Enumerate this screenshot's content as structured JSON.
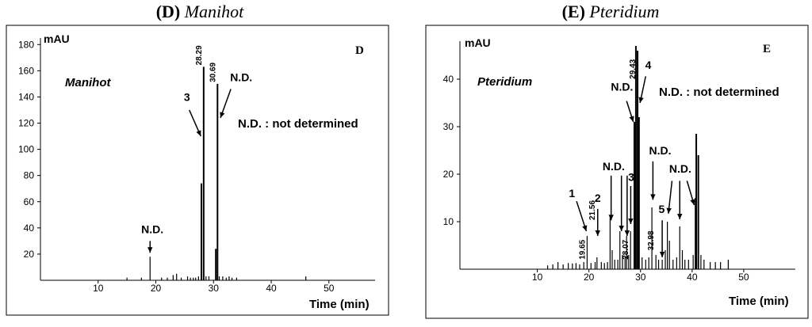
{
  "chart_data": [
    {
      "type": "line",
      "id": "D",
      "title_letter": "(D)",
      "title_name": "Manihot",
      "panel_letter": "D",
      "panel_name": "Manihot",
      "ylabel": "mAU",
      "xlabel": "Time (min)",
      "xlim": [
        0,
        58
      ],
      "ylim": [
        0,
        185
      ],
      "xticks": [
        10,
        20,
        30,
        40,
        50
      ],
      "yticks": [
        20,
        40,
        60,
        80,
        100,
        120,
        140,
        160,
        180
      ],
      "grid": false,
      "note": "N.D. : not determined",
      "peaks": [
        [
          15,
          2
        ],
        [
          17.5,
          2
        ],
        [
          19,
          18
        ],
        [
          21,
          2
        ],
        [
          22,
          2
        ],
        [
          23,
          4
        ],
        [
          23.6,
          5
        ],
        [
          24.4,
          2
        ],
        [
          25.5,
          3
        ],
        [
          26,
          2
        ],
        [
          26.5,
          2
        ],
        [
          26.9,
          2
        ],
        [
          27.4,
          3
        ],
        [
          27.9,
          74
        ],
        [
          28.29,
          163
        ],
        [
          28.7,
          3
        ],
        [
          29.2,
          3
        ],
        [
          30.4,
          24
        ],
        [
          30.69,
          150
        ],
        [
          31,
          3
        ],
        [
          31.6,
          3
        ],
        [
          32.2,
          2
        ],
        [
          32.7,
          3
        ],
        [
          33.2,
          2
        ],
        [
          34,
          2
        ],
        [
          46,
          3
        ]
      ],
      "rt_labels": [
        {
          "text": "28.29",
          "x": 28.29,
          "y": 163
        },
        {
          "text": "30.69",
          "x": 30.69,
          "y": 150
        }
      ],
      "annotations": [
        {
          "text": "N.D.",
          "tx": 19.4,
          "ty": 36,
          "ax": 19,
          "ay": 21,
          "sx": 19,
          "sy": 30
        },
        {
          "text": "3",
          "tx": 25.4,
          "ty": 137,
          "ax": 27.8,
          "ay": 110,
          "sx": 25.8,
          "sy": 130
        },
        {
          "text": "N.D.",
          "tx": 34.8,
          "ty": 152,
          "ax": 31.2,
          "ay": 124,
          "sx": 33,
          "sy": 146
        }
      ]
    },
    {
      "type": "line",
      "id": "E",
      "title_letter": "(E)",
      "title_name": "Pteridium",
      "panel_letter": "E",
      "panel_name": "Pteridium",
      "ylabel": "mAU",
      "xlabel": "Time (min)",
      "xlim": [
        -5,
        60
      ],
      "ylim": [
        0,
        48
      ],
      "xticks": [
        10,
        20,
        30,
        40,
        50
      ],
      "yticks": [
        10,
        20,
        30,
        40
      ],
      "grid": false,
      "note": "N.D. : not determined",
      "peaks": [
        [
          12,
          0.8
        ],
        [
          13,
          1
        ],
        [
          14,
          1.5
        ],
        [
          15,
          1
        ],
        [
          16,
          1.3
        ],
        [
          16.8,
          1.2
        ],
        [
          17.5,
          1.3
        ],
        [
          18.2,
          1
        ],
        [
          19,
          1.5
        ],
        [
          19.65,
          7
        ],
        [
          20.4,
          1.3
        ],
        [
          21.2,
          1.5
        ],
        [
          21.56,
          2.5
        ],
        [
          22.4,
          1.5
        ],
        [
          23,
          1.3
        ],
        [
          23.6,
          1.5
        ],
        [
          24.1,
          11
        ],
        [
          24.5,
          4
        ],
        [
          25,
          2
        ],
        [
          25.6,
          2
        ],
        [
          26,
          8
        ],
        [
          26.5,
          3
        ],
        [
          27,
          2.5
        ],
        [
          27.3,
          7
        ],
        [
          27.7,
          3
        ],
        [
          28.07,
          8
        ],
        [
          28.8,
          31
        ],
        [
          29.1,
          47
        ],
        [
          29.43,
          46
        ],
        [
          29.7,
          32
        ],
        [
          30.3,
          2.5
        ],
        [
          31,
          2
        ],
        [
          31.6,
          2.5
        ],
        [
          32.2,
          13
        ],
        [
          32.98,
          3
        ],
        [
          33.5,
          2
        ],
        [
          34.2,
          2
        ],
        [
          34.8,
          4
        ],
        [
          35.2,
          10
        ],
        [
          35.6,
          6
        ],
        [
          36.3,
          2
        ],
        [
          37,
          2.5
        ],
        [
          37.6,
          9
        ],
        [
          38.1,
          4
        ],
        [
          38.6,
          2
        ],
        [
          39.3,
          2
        ],
        [
          40.2,
          3
        ],
        [
          40.6,
          15
        ],
        [
          40.8,
          28.5
        ],
        [
          41.2,
          24
        ],
        [
          41.7,
          3
        ],
        [
          42.3,
          2
        ],
        [
          43.5,
          1.5
        ],
        [
          44.5,
          1.5
        ],
        [
          45.5,
          1.5
        ],
        [
          47,
          2
        ]
      ],
      "rt_labels": [
        {
          "text": "19.65",
          "x": 19.65,
          "y": 1.7
        },
        {
          "text": "21.56",
          "x": 21.56,
          "y": 10
        },
        {
          "text": "28.07",
          "x": 28.07,
          "y": 1.7
        },
        {
          "text": "29.43",
          "x": 29.43,
          "y": 39.7
        },
        {
          "text": "32.98",
          "x": 32.98,
          "y": 3.6
        }
      ],
      "annotations": [
        {
          "text": "1",
          "tx": 16.7,
          "ty": 15.2,
          "ax": 19.5,
          "ay": 8,
          "sx": 17.6,
          "sy": 14.3
        },
        {
          "text": "2",
          "tx": 21.7,
          "ty": 14.2,
          "ax": 21.7,
          "ay": 7,
          "sx": 21.7,
          "sy": 12.7
        },
        {
          "text": "N.D.",
          "tx": 24.8,
          "ty": 20.8,
          "ax": 24.3,
          "ay": 10.3,
          "sx": 24.3,
          "sy": 19.7
        },
        {
          "text": "",
          "tx": 0,
          "ty": 0,
          "ax": 26.3,
          "ay": 8,
          "sx": 26.3,
          "sy": 19.7
        },
        {
          "text": "",
          "tx": 0,
          "ty": 0,
          "ax": 27.4,
          "ay": 7,
          "sx": 27.4,
          "sy": 19.7
        },
        {
          "text": "3",
          "tx": 28.2,
          "ty": 18.6,
          "ax": 28.1,
          "ay": 9.5,
          "sx": 28.1,
          "sy": 17.5
        },
        {
          "text": "N.D.",
          "tx": 26.4,
          "ty": 37.6,
          "ax": 28.6,
          "ay": 31,
          "sx": 27.3,
          "sy": 35.4
        },
        {
          "text": "4",
          "tx": 31.5,
          "ty": 42.2,
          "ax": 29.9,
          "ay": 35,
          "sx": 31,
          "sy": 40.6
        },
        {
          "text": "N.D.",
          "tx": 33.8,
          "ty": 24.2,
          "ax": 32.4,
          "ay": 14.6,
          "sx": 32.4,
          "sy": 22.7
        },
        {
          "text": "5",
          "tx": 34.1,
          "ty": 11.8,
          "ax": 34.2,
          "ay": 2.5,
          "sx": 34.2,
          "sy": 10.3
        },
        {
          "text": "N.D.",
          "tx": 37.7,
          "ty": 20.3,
          "ax": 35.4,
          "ay": 11.7,
          "sx": 36.1,
          "sy": 18.6
        },
        {
          "text": "",
          "tx": 0,
          "ty": 0,
          "ax": 37.6,
          "ay": 10.5,
          "sx": 37.6,
          "sy": 18.6
        },
        {
          "text": "",
          "tx": 0,
          "ty": 0,
          "ax": 40.4,
          "ay": 13.5,
          "sx": 39,
          "sy": 18.6
        }
      ]
    }
  ]
}
